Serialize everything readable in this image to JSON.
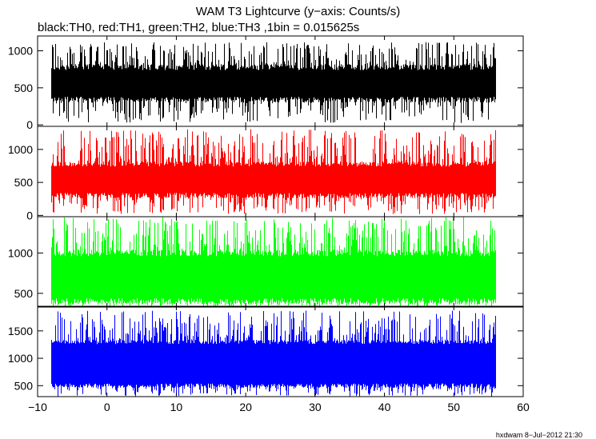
{
  "chart_data": {
    "type": "line",
    "title": "WAM T3 Lightcurve (y−axis: Counts/s)",
    "subtitle": "black:TH0, red:TH1, green:TH2, blue:TH3 ,1bin = 0.015625s",
    "x_range": [
      -10,
      60
    ],
    "x_ticks": [
      -10,
      0,
      10,
      20,
      30,
      40,
      50,
      60
    ],
    "x_tick_labels": [
      "−10",
      "0",
      "10",
      "20",
      "30",
      "40",
      "50",
      "60"
    ],
    "data_x_range": [
      -8,
      56
    ],
    "panels": [
      {
        "name": "TH0",
        "color": "#000000",
        "ylim": [
          -20,
          1200
        ],
        "yticks": [
          0,
          500,
          1000
        ],
        "ytick_labels": [
          "0",
          "500",
          "1000"
        ],
        "band_low": 340,
        "band_high": 780,
        "spike_min": 20,
        "spike_max": 1120
      },
      {
        "name": "TH1",
        "color": "#ff0000",
        "ylim": [
          -20,
          1350
        ],
        "yticks": [
          0,
          500,
          1000
        ],
        "ytick_labels": [
          "0",
          "500",
          "1000"
        ],
        "band_low": 300,
        "band_high": 780,
        "spike_min": 20,
        "spike_max": 1310
      },
      {
        "name": "TH2",
        "color": "#00ff00",
        "ylim": [
          330,
          1450
        ],
        "yticks": [
          500,
          1000
        ],
        "ytick_labels": [
          "500",
          "1000"
        ],
        "band_low": 400,
        "band_high": 1000,
        "spike_min": 330,
        "spike_max": 1450
      },
      {
        "name": "TH3",
        "color": "#0000ff",
        "ylim": [
          300,
          1950
        ],
        "yticks": [
          500,
          1000,
          1500
        ],
        "ytick_labels": [
          "500",
          "1000",
          "1500"
        ],
        "band_low": 500,
        "band_high": 1300,
        "spike_min": 300,
        "spike_max": 1870
      }
    ]
  },
  "footer": "hxdwam  8−Jul−2012 21:30"
}
